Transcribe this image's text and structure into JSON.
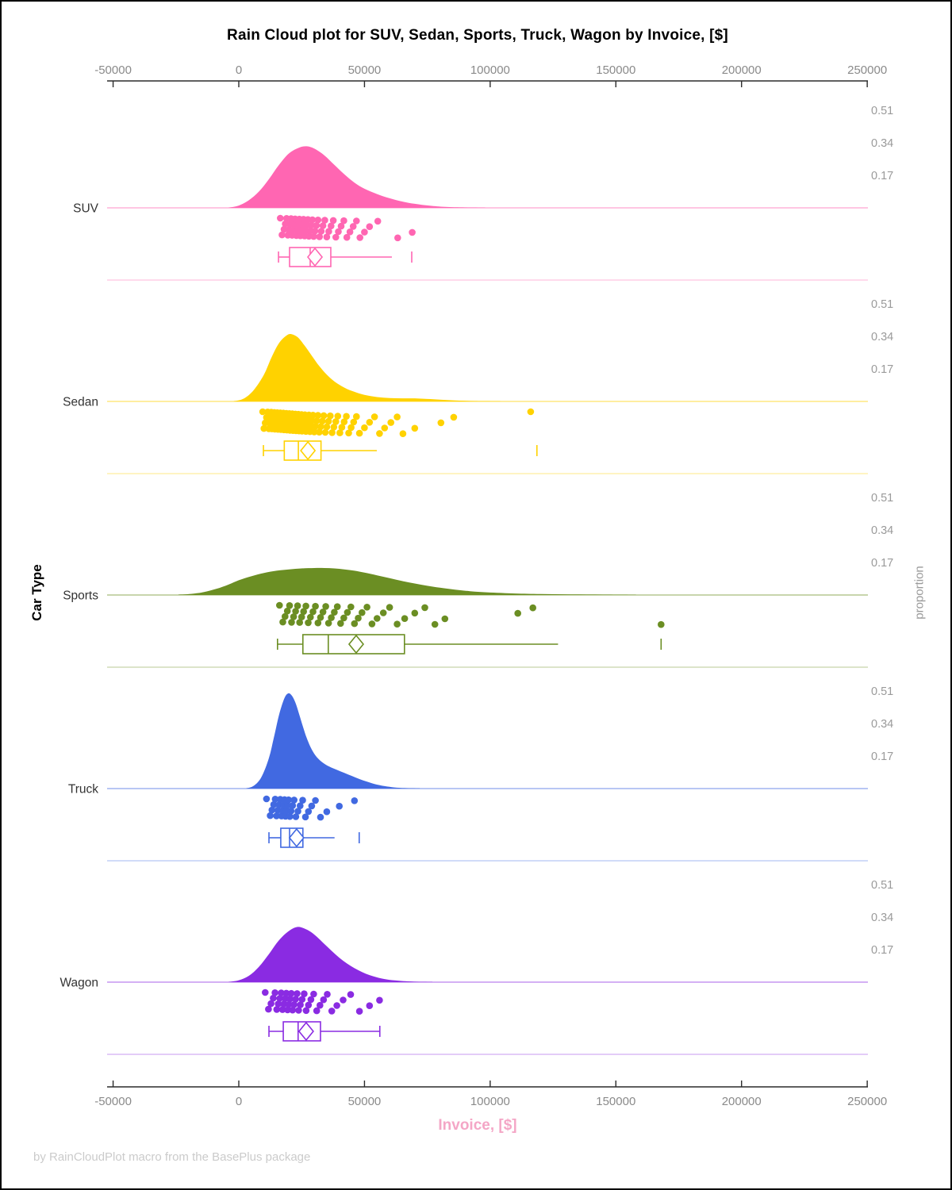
{
  "title": "Rain Cloud plot for SUV, Sedan, Sports, Truck, Wagon by Invoice, [$]",
  "xlabel": "Invoice, [$]",
  "ylabel": "Car Type",
  "right_axis_label": "proportion",
  "footer": "by RainCloudPlot macro from the BasePlus package",
  "colors": {
    "xlabel_pink": "#F4A6C6",
    "axis_line": "#2b2b2b",
    "tick_label": "#8a8a8a",
    "category_label": "#333333",
    "proportion_label": "#9a9a9a"
  },
  "chart_data": {
    "type": "raincloud",
    "title": "Rain Cloud plot for SUV, Sedan, Sports, Truck, Wagon by Invoice, [$]",
    "xlabel": "Invoice, [$]",
    "ylabel": "Car Type",
    "right_axis_label": "proportion",
    "x_axis": {
      "range": [
        -50000,
        250000
      ],
      "ticks": [
        {
          "v": -50000,
          "label": "-50000"
        },
        {
          "v": 0,
          "label": "0"
        },
        {
          "v": 50000,
          "label": "50000"
        },
        {
          "v": 100000,
          "label": "100000"
        },
        {
          "v": 150000,
          "label": "150000"
        },
        {
          "v": 200000,
          "label": "200000"
        },
        {
          "v": 250000,
          "label": "250000"
        }
      ]
    },
    "proportion_ticks": [
      0.51,
      0.34,
      0.17
    ],
    "panels": [
      {
        "name": "SUV",
        "color": "#FF66B2",
        "curve": [
          [
            -4000,
            0.001
          ],
          [
            0,
            0.012
          ],
          [
            4000,
            0.04
          ],
          [
            8000,
            0.085
          ],
          [
            12000,
            0.15
          ],
          [
            16000,
            0.225
          ],
          [
            20000,
            0.285
          ],
          [
            24000,
            0.315
          ],
          [
            27000,
            0.322
          ],
          [
            30000,
            0.31
          ],
          [
            34000,
            0.275
          ],
          [
            38000,
            0.225
          ],
          [
            42000,
            0.175
          ],
          [
            46000,
            0.132
          ],
          [
            50000,
            0.1
          ],
          [
            55000,
            0.072
          ],
          [
            60000,
            0.05
          ],
          [
            65000,
            0.033
          ],
          [
            70000,
            0.021
          ],
          [
            76000,
            0.011
          ],
          [
            82000,
            0.005
          ],
          [
            90000,
            0.002
          ],
          [
            98000,
            0.001
          ]
        ],
        "points": [
          16500,
          17200,
          18000,
          18500,
          19000,
          19500,
          19900,
          20300,
          20800,
          21200,
          21600,
          22000,
          22400,
          22900,
          23300,
          23700,
          24100,
          24500,
          24900,
          25300,
          25800,
          26200,
          26600,
          27000,
          27500,
          27900,
          28400,
          28800,
          29300,
          29800,
          30300,
          30900,
          31500,
          32100,
          32800,
          33500,
          34200,
          35000,
          35800,
          36700,
          37600,
          38600,
          39600,
          40700,
          41800,
          43000,
          44200,
          45500,
          46800,
          48200,
          50000,
          52000,
          55300,
          63200,
          69000
        ],
        "box": {
          "low": 15800,
          "q1": 20200,
          "median": 28400,
          "q3": 36600,
          "mean": 30300,
          "high": 60900,
          "outliers": [
            68800
          ],
          "cap_high": false
        }
      },
      {
        "name": "Sedan",
        "color": "#FFD200",
        "curve": [
          [
            -2000,
            0.001
          ],
          [
            2000,
            0.015
          ],
          [
            6000,
            0.06
          ],
          [
            10000,
            0.14
          ],
          [
            13000,
            0.23
          ],
          [
            16000,
            0.305
          ],
          [
            19000,
            0.345
          ],
          [
            21000,
            0.352
          ],
          [
            23500,
            0.335
          ],
          [
            26000,
            0.295
          ],
          [
            29000,
            0.24
          ],
          [
            32000,
            0.185
          ],
          [
            35000,
            0.14
          ],
          [
            38000,
            0.105
          ],
          [
            42000,
            0.072
          ],
          [
            46000,
            0.05
          ],
          [
            50000,
            0.034
          ],
          [
            55000,
            0.023
          ],
          [
            60000,
            0.018
          ],
          [
            65000,
            0.016
          ],
          [
            70000,
            0.016
          ],
          [
            75000,
            0.013
          ],
          [
            80000,
            0.009
          ],
          [
            86000,
            0.005
          ],
          [
            94000,
            0.002
          ],
          [
            104000,
            0.001
          ]
        ],
        "points": [
          9500,
          10000,
          10500,
          11000,
          11500,
          12000,
          12300,
          12600,
          12900,
          13200,
          13500,
          13800,
          14100,
          14400,
          14700,
          15000,
          15300,
          15600,
          15900,
          16200,
          16500,
          16800,
          17100,
          17400,
          17700,
          18000,
          18300,
          18600,
          18900,
          19200,
          19500,
          19800,
          20100,
          20400,
          20700,
          21000,
          21300,
          21600,
          21900,
          22200,
          22500,
          22800,
          23100,
          23400,
          23700,
          24000,
          24300,
          24600,
          24900,
          25200,
          25500,
          25900,
          26300,
          26700,
          27100,
          27500,
          27900,
          28300,
          28700,
          29100,
          29500,
          30000,
          30500,
          31000,
          31500,
          32000,
          32600,
          33200,
          33800,
          34400,
          35000,
          35700,
          36400,
          37100,
          37800,
          38600,
          39400,
          40200,
          41000,
          41900,
          42800,
          43700,
          44700,
          45700,
          46800,
          48000,
          50000,
          52000,
          54000,
          56000,
          58000,
          60500,
          63000,
          65300,
          70000,
          80400,
          85500,
          116100
        ],
        "box": {
          "low": 9800,
          "q1": 18100,
          "median": 23700,
          "q3": 32700,
          "mean": 27500,
          "high": 54900,
          "outliers": [
            118600
          ],
          "cap_high": false
        }
      },
      {
        "name": "Sports",
        "color": "#6B8E23",
        "curve": [
          [
            -24000,
            0.002
          ],
          [
            -19000,
            0.006
          ],
          [
            -14000,
            0.015
          ],
          [
            -9000,
            0.032
          ],
          [
            -4000,
            0.055
          ],
          [
            0,
            0.077
          ],
          [
            5000,
            0.098
          ],
          [
            10000,
            0.115
          ],
          [
            15000,
            0.127
          ],
          [
            20000,
            0.134
          ],
          [
            25000,
            0.139
          ],
          [
            30000,
            0.141
          ],
          [
            34000,
            0.141
          ],
          [
            38000,
            0.139
          ],
          [
            42000,
            0.134
          ],
          [
            46000,
            0.127
          ],
          [
            50000,
            0.117
          ],
          [
            55000,
            0.103
          ],
          [
            60000,
            0.088
          ],
          [
            65000,
            0.073
          ],
          [
            70000,
            0.06
          ],
          [
            75000,
            0.048
          ],
          [
            80000,
            0.038
          ],
          [
            86000,
            0.028
          ],
          [
            92000,
            0.02
          ],
          [
            100000,
            0.013
          ],
          [
            110000,
            0.008
          ],
          [
            120000,
            0.005
          ],
          [
            132000,
            0.003
          ],
          [
            145000,
            0.002
          ],
          [
            158000,
            0.001
          ]
        ],
        "points": [
          16200,
          17500,
          18400,
          19300,
          20200,
          21000,
          21800,
          22600,
          23400,
          24200,
          25000,
          25800,
          26700,
          27600,
          28500,
          29500,
          30500,
          31500,
          32500,
          33500,
          34600,
          35700,
          36800,
          38000,
          39200,
          40500,
          41800,
          43200,
          44600,
          46000,
          47500,
          49000,
          51000,
          53000,
          55000,
          57500,
          60000,
          63000,
          66000,
          70000,
          74000,
          78000,
          82000,
          111000,
          117000,
          168000
        ],
        "box": {
          "low": 15400,
          "q1": 25500,
          "median": 35600,
          "q3": 65900,
          "mean": 46700,
          "high": 127000,
          "outliers": [
            168000
          ],
          "cap_high": false
        }
      },
      {
        "name": "Truck",
        "color": "#4169E1",
        "curve": [
          [
            3000,
            0.001
          ],
          [
            6000,
            0.015
          ],
          [
            9000,
            0.06
          ],
          [
            12000,
            0.16
          ],
          [
            14000,
            0.27
          ],
          [
            16000,
            0.385
          ],
          [
            18000,
            0.468
          ],
          [
            19500,
            0.497
          ],
          [
            21000,
            0.488
          ],
          [
            22500,
            0.45
          ],
          [
            24000,
            0.39
          ],
          [
            25500,
            0.325
          ],
          [
            27000,
            0.265
          ],
          [
            29000,
            0.205
          ],
          [
            31000,
            0.165
          ],
          [
            33500,
            0.135
          ],
          [
            36000,
            0.115
          ],
          [
            39000,
            0.098
          ],
          [
            42000,
            0.082
          ],
          [
            45000,
            0.066
          ],
          [
            48000,
            0.05
          ],
          [
            51000,
            0.036
          ],
          [
            54000,
            0.024
          ],
          [
            58000,
            0.013
          ],
          [
            62000,
            0.006
          ],
          [
            67000,
            0.002
          ],
          [
            72000,
            0.001
          ]
        ],
        "points": [
          11000,
          12500,
          13200,
          13900,
          14500,
          15000,
          15500,
          16000,
          16500,
          17000,
          17400,
          17800,
          18200,
          18600,
          19000,
          19400,
          19800,
          20300,
          20800,
          21400,
          22000,
          22700,
          23500,
          24400,
          25400,
          26500,
          27700,
          29000,
          30500,
          32500,
          35000,
          40000,
          46000
        ],
        "box": {
          "low": 12000,
          "q1": 16700,
          "median": 20200,
          "q3": 25500,
          "mean": 23000,
          "high": 38100,
          "outliers": [
            47900
          ],
          "cap_high": false
        }
      },
      {
        "name": "Wagon",
        "color": "#8A2BE2",
        "curve": [
          [
            -4000,
            0.001
          ],
          [
            0,
            0.01
          ],
          [
            4000,
            0.033
          ],
          [
            8000,
            0.08
          ],
          [
            12000,
            0.147
          ],
          [
            15000,
            0.203
          ],
          [
            18000,
            0.247
          ],
          [
            21000,
            0.277
          ],
          [
            23000,
            0.288
          ],
          [
            25000,
            0.286
          ],
          [
            28000,
            0.268
          ],
          [
            31000,
            0.238
          ],
          [
            34000,
            0.2
          ],
          [
            37000,
            0.163
          ],
          [
            40000,
            0.128
          ],
          [
            43000,
            0.098
          ],
          [
            46000,
            0.073
          ],
          [
            49000,
            0.053
          ],
          [
            52000,
            0.037
          ],
          [
            55000,
            0.025
          ],
          [
            58000,
            0.016
          ],
          [
            62000,
            0.009
          ],
          [
            66000,
            0.005
          ],
          [
            71000,
            0.002
          ],
          [
            77000,
            0.001
          ]
        ],
        "points": [
          10500,
          11800,
          12800,
          13700,
          14400,
          15100,
          15700,
          16300,
          16900,
          17400,
          17900,
          18400,
          18900,
          19400,
          19900,
          20400,
          20900,
          21400,
          22000,
          22600,
          23200,
          23800,
          24500,
          25200,
          26000,
          26800,
          27700,
          28700,
          29800,
          31000,
          32300,
          33700,
          35200,
          37000,
          39000,
          41500,
          44500,
          48000,
          52000,
          56000
        ],
        "box": {
          "low": 12000,
          "q1": 17700,
          "median": 23600,
          "q3": 32500,
          "mean": 26800,
          "high": 56100,
          "outliers": [],
          "cap_high": true
        }
      }
    ]
  }
}
